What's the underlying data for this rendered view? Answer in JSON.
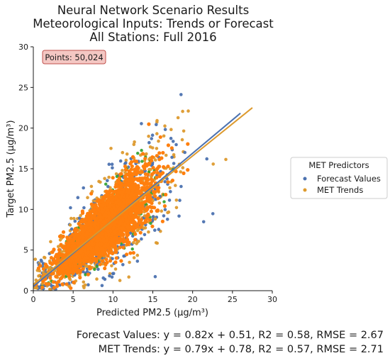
{
  "chart_data": {
    "type": "scatter",
    "title": [
      "Neural Network Scenario Results",
      "Meteorological Inputs: Trends or Forecast",
      "All Stations: Full 2016"
    ],
    "xlabel": "Predicted PM2.5 (μg/m³)",
    "ylabel": "Target PM2.5 (μg/m³)",
    "xlim": [
      0,
      30
    ],
    "ylim": [
      0,
      30
    ],
    "x_ticks": [
      0,
      5,
      10,
      15,
      20,
      25,
      30
    ],
    "y_ticks": [
      0,
      5,
      10,
      15,
      20,
      25,
      30
    ],
    "grid": false,
    "points_badge": {
      "label": "Points: 50,024",
      "fill_color": "#f4c7c3",
      "border_color": "#c0504d"
    },
    "legend": {
      "title": "MET Predictors",
      "placement": "right"
    },
    "series": [
      {
        "name": "Forecast Values",
        "color": "#4c72b0",
        "fit": {
          "slope": 0.82,
          "intercept": 0.51,
          "x_range": [
            0,
            26
          ]
        },
        "stats_label": "Forecast Values: y = 0.82x + 0.51, R2 = 0.58, RMSE = 2.67"
      },
      {
        "name": "MET Trends",
        "color": "#dd9a2e",
        "fit": {
          "slope": 0.79,
          "intercept": 0.78,
          "x_range": [
            0,
            27.5
          ]
        },
        "stats_label": "MET Trends: y = 0.79x + 0.78, R2 = 0.57, RMSE = 2.71"
      }
    ],
    "dense_core_color": "#ff7f0e",
    "dense_core_alt_color": "#2ca02c"
  }
}
